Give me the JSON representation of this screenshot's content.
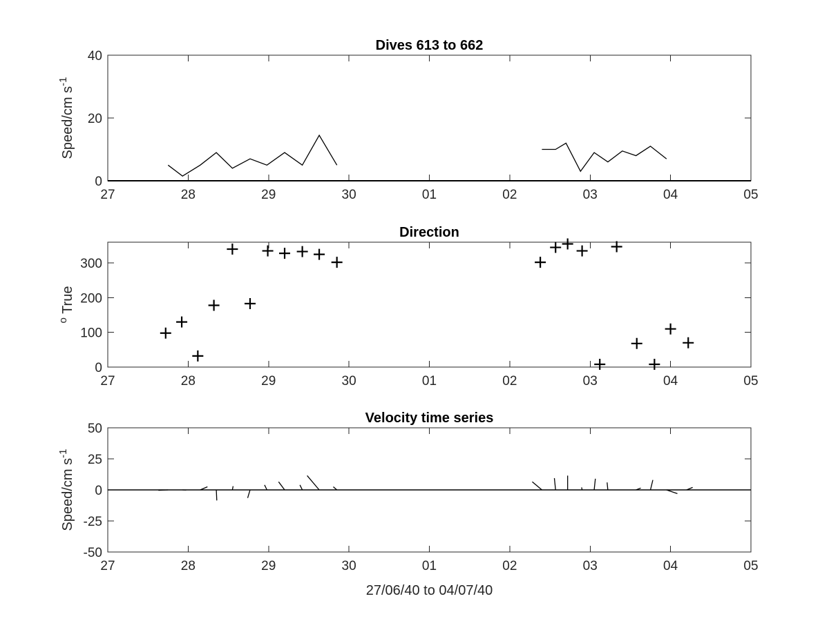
{
  "chart_data": [
    {
      "type": "line",
      "title": "Dives 613 to 662",
      "ylabel": "Speed/cm s",
      "ylabel_superscript": "-1",
      "xlabel": "",
      "x_ticks": [
        "27",
        "28",
        "29",
        "30",
        "01",
        "02",
        "03",
        "04",
        "05"
      ],
      "xlim": [
        0,
        8
      ],
      "ylim": [
        0,
        40
      ],
      "y_ticks": [
        "0",
        "20",
        "40"
      ],
      "grid": false,
      "series": [
        {
          "segments": [
            {
              "x": [
                0.75,
                0.93,
                1.15,
                1.35,
                1.55,
                1.77,
                1.98,
                2.2,
                2.42,
                2.63,
                2.85
              ],
              "y": [
                5,
                1.5,
                5,
                9,
                4,
                7,
                5,
                9,
                5,
                14.5,
                5
              ]
            },
            {
              "x": [
                5.4,
                5.57,
                5.7,
                5.88,
                6.05,
                6.22,
                6.4,
                6.57,
                6.75,
                6.95
              ],
              "y": [
                10,
                10,
                12,
                3,
                9,
                6,
                9.5,
                8,
                11,
                7
              ]
            }
          ]
        }
      ]
    },
    {
      "type": "scatter",
      "title": "Direction",
      "ylabel": "True",
      "ylabel_superscript": "o",
      "xlabel": "",
      "x_ticks": [
        "27",
        "28",
        "29",
        "30",
        "01",
        "02",
        "03",
        "04",
        "05"
      ],
      "xlim": [
        0,
        8
      ],
      "ylim": [
        0,
        360
      ],
      "y_ticks": [
        "0",
        "100",
        "200",
        "300"
      ],
      "grid": false,
      "marker": "+",
      "x": [
        0.72,
        0.92,
        1.12,
        1.32,
        1.55,
        1.77,
        1.99,
        2.2,
        2.42,
        2.63,
        2.85,
        5.38,
        5.57,
        5.72,
        5.9,
        6.12,
        6.33,
        6.58,
        6.8,
        7.0,
        7.22
      ],
      "y": [
        98,
        130,
        32,
        178,
        340,
        183,
        335,
        328,
        333,
        325,
        302,
        302,
        345,
        355,
        335,
        8,
        347,
        68,
        8,
        110,
        70
      ]
    },
    {
      "type": "line",
      "title": "Velocity time series",
      "ylabel": "Speed/cm s",
      "ylabel_superscript": "-1",
      "xlabel": "27/06/40 to 04/07/40",
      "x_ticks": [
        "27",
        "28",
        "29",
        "30",
        "01",
        "02",
        "03",
        "04",
        "05"
      ],
      "xlim": [
        0,
        8
      ],
      "ylim": [
        -50,
        50
      ],
      "y_ticks": [
        "50",
        "25",
        "0",
        "-25",
        "-50"
      ],
      "grid": false,
      "stick_vectors": [
        {
          "x": 0.75,
          "u": -0.4,
          "v": -0.3
        },
        {
          "x": 0.93,
          "u": 0.15,
          "v": -0.15
        },
        {
          "x": 1.15,
          "u": 0.3,
          "v": 2.5
        },
        {
          "x": 1.35,
          "u": 0.02,
          "v": -8.5
        },
        {
          "x": 1.55,
          "u": 0.03,
          "v": 3
        },
        {
          "x": 1.77,
          "u": -0.1,
          "v": -6.5
        },
        {
          "x": 1.98,
          "u": -0.1,
          "v": 4
        },
        {
          "x": 2.2,
          "u": -0.25,
          "v": 6.5
        },
        {
          "x": 2.42,
          "u": -0.1,
          "v": 4
        },
        {
          "x": 2.63,
          "u": -0.5,
          "v": 11.5
        },
        {
          "x": 2.85,
          "u": -0.15,
          "v": 2.5
        },
        {
          "x": 5.4,
          "u": -0.4,
          "v": 6.5
        },
        {
          "x": 5.57,
          "u": -0.05,
          "v": 9.5
        },
        {
          "x": 5.72,
          "u": 0.0,
          "v": 11.5
        },
        {
          "x": 5.9,
          "u": -0.02,
          "v": 2
        },
        {
          "x": 6.05,
          "u": 0.05,
          "v": 9
        },
        {
          "x": 6.22,
          "u": -0.03,
          "v": 6
        },
        {
          "x": 6.57,
          "u": 0.2,
          "v": 1.5
        },
        {
          "x": 6.75,
          "u": 0.1,
          "v": 8
        },
        {
          "x": 6.95,
          "u": 0.45,
          "v": -3
        },
        {
          "x": 7.2,
          "u": 0.25,
          "v": 2
        }
      ]
    }
  ]
}
